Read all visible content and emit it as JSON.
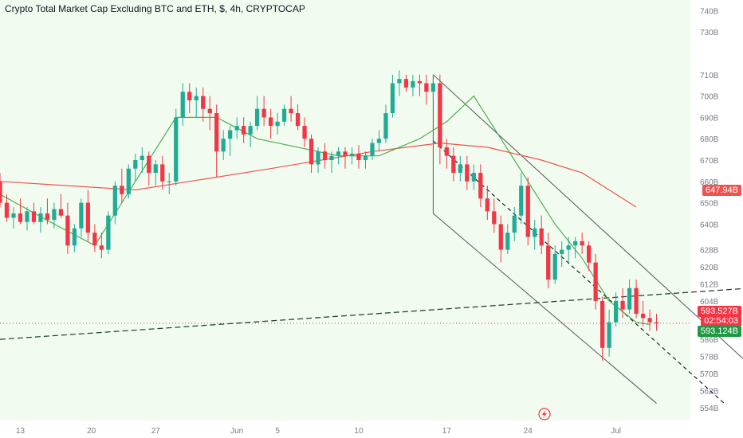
{
  "header": {
    "title": "Crypto Total Market Cap Excluding BTC and ETH, $, 4h, CRYPTOCAP"
  },
  "badges": {
    "ma_value": "647.94B",
    "last_price": "593.527B",
    "countdown": "02:54:03",
    "ref_price": "593.124B"
  },
  "colors": {
    "up": "#22ab94",
    "down": "#f23645",
    "ma_slow": "#ef5350",
    "ma_fast": "#4caf50",
    "bg_plot": "#f1fbef",
    "badge_ma": "#ef5350",
    "badge_last": "#f23645",
    "badge_ref": "#1e9b42"
  },
  "icons": {
    "replay": "lightning-icon"
  },
  "chart_data": {
    "type": "candlestick",
    "title": "Crypto Total Market Cap Excluding BTC and ETH, $, 4h, CRYPTOCAP",
    "y_ticks": [
      "740B",
      "730B",
      "710B",
      "700B",
      "690B",
      "680B",
      "670B",
      "660B",
      "650B",
      "640B",
      "628B",
      "620B",
      "612B",
      "604B",
      "586B",
      "578B",
      "570B",
      "562B",
      "554B"
    ],
    "x_ticks": [
      "13",
      "20",
      "27",
      "Jun",
      "5",
      "10",
      "17",
      "24",
      "Jul"
    ],
    "ylim": [
      548,
      745
    ],
    "x_range": [
      0,
      102
    ],
    "candles": [
      [
        660,
        664,
        648,
        650
      ],
      [
        650,
        654,
        641,
        643
      ],
      [
        643,
        648,
        638,
        645
      ],
      [
        645,
        652,
        640,
        641
      ],
      [
        641,
        648,
        637,
        646
      ],
      [
        646,
        650,
        640,
        641
      ],
      [
        641,
        648,
        636,
        645
      ],
      [
        645,
        652,
        640,
        642
      ],
      [
        642,
        650,
        638,
        647
      ],
      [
        647,
        654,
        643,
        644
      ],
      [
        644,
        650,
        626,
        630
      ],
      [
        630,
        640,
        627,
        638
      ],
      [
        638,
        652,
        634,
        650
      ],
      [
        650,
        656,
        632,
        636
      ],
      [
        636,
        640,
        627,
        630
      ],
      [
        630,
        636,
        624,
        628
      ],
      [
        628,
        646,
        626,
        644
      ],
      [
        644,
        660,
        640,
        658
      ],
      [
        658,
        666,
        650,
        654
      ],
      [
        654,
        668,
        652,
        666
      ],
      [
        666,
        673,
        660,
        670
      ],
      [
        670,
        676,
        664,
        672
      ],
      [
        672,
        674,
        658,
        664
      ],
      [
        664,
        670,
        658,
        668
      ],
      [
        668,
        672,
        656,
        660
      ],
      [
        660,
        664,
        654,
        660
      ],
      [
        660,
        694,
        658,
        690
      ],
      [
        690,
        706,
        686,
        702
      ],
      [
        702,
        706,
        692,
        698
      ],
      [
        698,
        704,
        690,
        700
      ],
      [
        700,
        704,
        688,
        694
      ],
      [
        694,
        700,
        684,
        692
      ],
      [
        692,
        696,
        662,
        674
      ],
      [
        674,
        684,
        670,
        680
      ],
      [
        680,
        686,
        672,
        684
      ],
      [
        684,
        690,
        680,
        686
      ],
      [
        686,
        690,
        678,
        682
      ],
      [
        682,
        688,
        676,
        686
      ],
      [
        686,
        700,
        684,
        694
      ],
      [
        694,
        700,
        686,
        690
      ],
      [
        690,
        694,
        680,
        686
      ],
      [
        686,
        692,
        682,
        688
      ],
      [
        688,
        696,
        686,
        694
      ],
      [
        694,
        700,
        688,
        692
      ],
      [
        692,
        696,
        684,
        686
      ],
      [
        686,
        690,
        676,
        680
      ],
      [
        680,
        682,
        664,
        668
      ],
      [
        668,
        676,
        664,
        674
      ],
      [
        674,
        678,
        666,
        670
      ],
      [
        670,
        674,
        664,
        672
      ],
      [
        672,
        676,
        668,
        674
      ],
      [
        674,
        676,
        666,
        672
      ],
      [
        672,
        676,
        668,
        673
      ],
      [
        673,
        677,
        666,
        670
      ],
      [
        670,
        674,
        666,
        672
      ],
      [
        672,
        680,
        670,
        678
      ],
      [
        678,
        684,
        674,
        680
      ],
      [
        680,
        696,
        678,
        692
      ],
      [
        692,
        710,
        690,
        706
      ],
      [
        706,
        712,
        700,
        708
      ],
      [
        708,
        710,
        702,
        704
      ],
      [
        704,
        710,
        700,
        707
      ],
      [
        707,
        710,
        700,
        706
      ],
      [
        706,
        710,
        696,
        702
      ],
      [
        702,
        708,
        698,
        706
      ],
      [
        706,
        710,
        668,
        676
      ],
      [
        676,
        680,
        666,
        672
      ],
      [
        672,
        676,
        660,
        664
      ],
      [
        664,
        672,
        660,
        668
      ],
      [
        668,
        672,
        656,
        660
      ],
      [
        660,
        668,
        656,
        664
      ],
      [
        664,
        668,
        648,
        652
      ],
      [
        652,
        658,
        642,
        646
      ],
      [
        646,
        652,
        636,
        640
      ],
      [
        640,
        644,
        622,
        628
      ],
      [
        628,
        640,
        626,
        636
      ],
      [
        636,
        648,
        632,
        644
      ],
      [
        644,
        664,
        640,
        658
      ],
      [
        658,
        662,
        630,
        634
      ],
      [
        634,
        642,
        628,
        638
      ],
      [
        638,
        644,
        626,
        630
      ],
      [
        630,
        636,
        610,
        614
      ],
      [
        614,
        630,
        612,
        626
      ],
      [
        626,
        632,
        620,
        628
      ],
      [
        628,
        634,
        622,
        630
      ],
      [
        630,
        634,
        624,
        632
      ],
      [
        632,
        636,
        626,
        630
      ],
      [
        630,
        632,
        618,
        622
      ],
      [
        622,
        626,
        600,
        604
      ],
      [
        604,
        606,
        576,
        582
      ],
      [
        582,
        600,
        578,
        594
      ],
      [
        594,
        608,
        592,
        604
      ],
      [
        604,
        610,
        596,
        600
      ],
      [
        600,
        614,
        598,
        610
      ],
      [
        610,
        614,
        596,
        598
      ],
      [
        598,
        604,
        592,
        596
      ],
      [
        596,
        600,
        590,
        594
      ],
      [
        594,
        598,
        590,
        593.5
      ]
    ],
    "ma_slow": [
      [
        0,
        660
      ],
      [
        20,
        656
      ],
      [
        40,
        666
      ],
      [
        55,
        674
      ],
      [
        65,
        678
      ],
      [
        72,
        676
      ],
      [
        80,
        670
      ],
      [
        86,
        664
      ],
      [
        90,
        656
      ],
      [
        94,
        648
      ]
    ],
    "ma_fast": [
      [
        0,
        654
      ],
      [
        8,
        640
      ],
      [
        14,
        630
      ],
      [
        20,
        660
      ],
      [
        26,
        690
      ],
      [
        32,
        690
      ],
      [
        38,
        680
      ],
      [
        44,
        676
      ],
      [
        50,
        672
      ],
      [
        56,
        672
      ],
      [
        62,
        680
      ],
      [
        66,
        688
      ],
      [
        70,
        700
      ],
      [
        74,
        680
      ],
      [
        78,
        660
      ],
      [
        82,
        640
      ],
      [
        86,
        624
      ],
      [
        90,
        604
      ],
      [
        94,
        594
      ],
      [
        96,
        593
      ]
    ],
    "annotations": {
      "trendline": [
        [
          0,
          586
        ],
        [
          120,
          612
        ]
      ],
      "channel_upper": [
        [
          64,
          710
        ],
        [
          117,
          556
        ]
      ],
      "channel_mid": [
        [
          64,
          679
        ],
        [
          107,
          556
        ]
      ],
      "channel_lower": [
        [
          64,
          645
        ],
        [
          97,
          556
        ]
      ],
      "last_price_level": 593.527
    },
    "grid": false,
    "legend": "none"
  }
}
